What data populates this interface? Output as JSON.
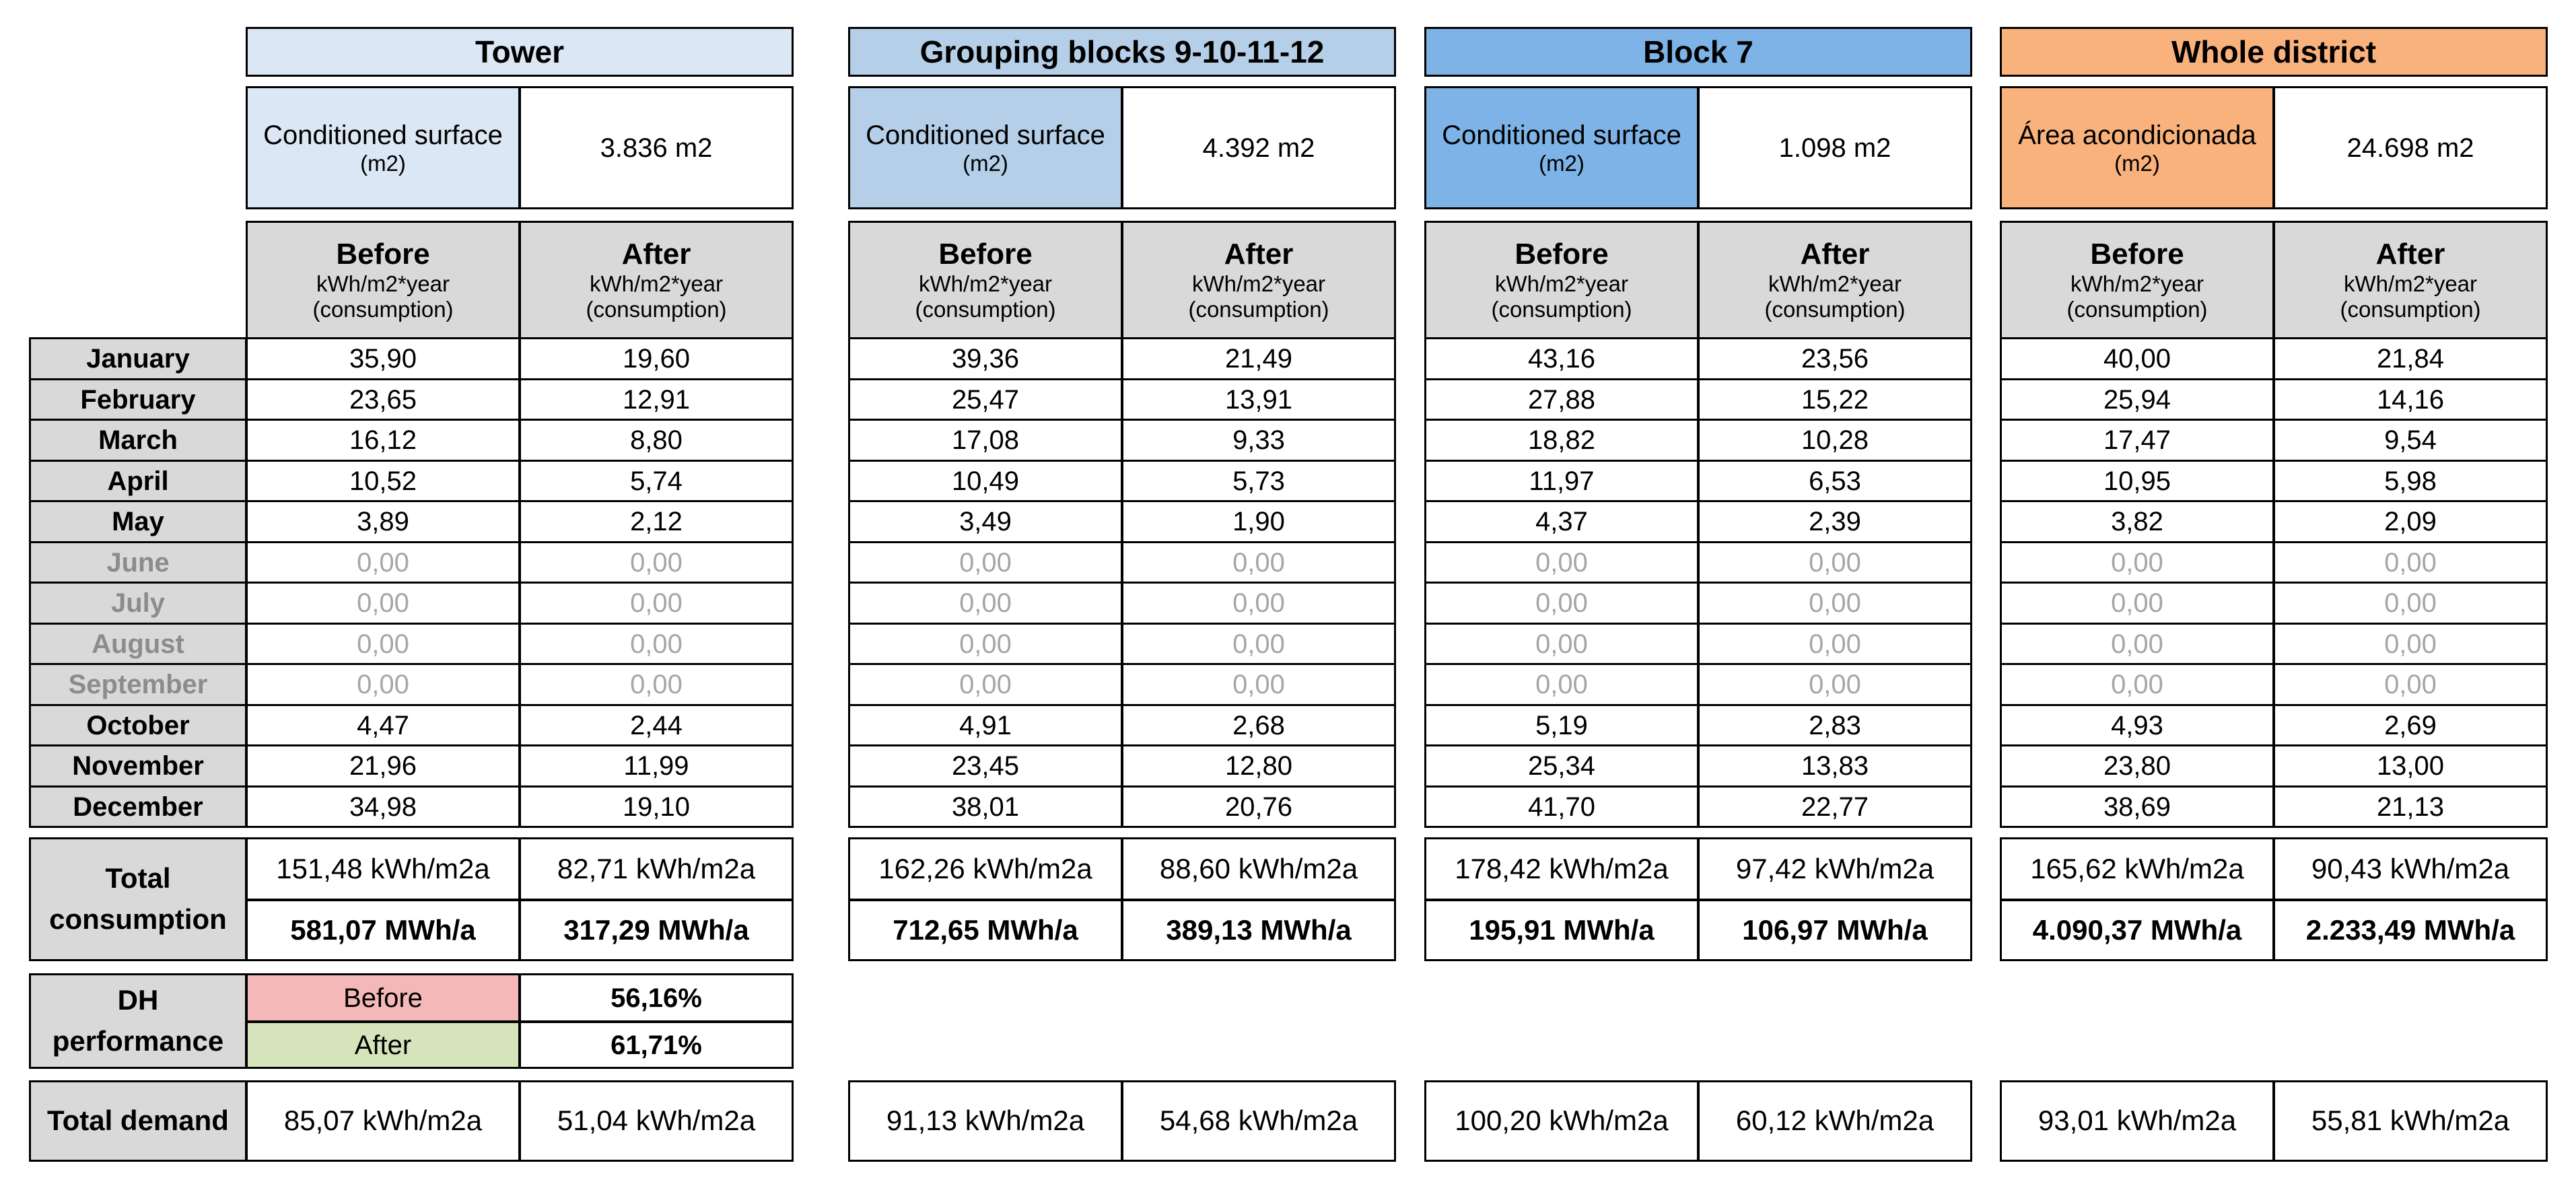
{
  "sections": [
    {
      "title": "Tower",
      "header_color": "#dbe7f4",
      "surface_label": "Conditioned surface",
      "surface_unit": "(m2)",
      "surface_value": "3.836 m2",
      "surface_color": "#dbe7f4",
      "before": [
        "35,90",
        "23,65",
        "16,12",
        "10,52",
        "3,89",
        "0,00",
        "0,00",
        "0,00",
        "0,00",
        "4,47",
        "21,96",
        "34,98"
      ],
      "after": [
        "19,60",
        "12,91",
        "8,80",
        "5,74",
        "2,12",
        "0,00",
        "0,00",
        "0,00",
        "0,00",
        "2,44",
        "11,99",
        "19,10"
      ],
      "total_kwh_before": "151,48 kWh/m2a",
      "total_kwh_after": "82,71 kWh/m2a",
      "total_mwh_before": "581,07 MWh/a",
      "total_mwh_after": "317,29 MWh/a",
      "demand_before": "85,07 kWh/m2a",
      "demand_after": "51,04 kWh/m2a"
    },
    {
      "title": "Grouping blocks 9-10-11-12",
      "header_color": "#b5cfe8",
      "surface_label": "Conditioned surface",
      "surface_unit": "(m2)",
      "surface_value": "4.392 m2",
      "surface_color": "#b5cfe8",
      "before": [
        "39,36",
        "25,47",
        "17,08",
        "10,49",
        "3,49",
        "0,00",
        "0,00",
        "0,00",
        "0,00",
        "4,91",
        "23,45",
        "38,01"
      ],
      "after": [
        "21,49",
        "13,91",
        "9,33",
        "5,73",
        "1,90",
        "0,00",
        "0,00",
        "0,00",
        "0,00",
        "2,68",
        "12,80",
        "20,76"
      ],
      "total_kwh_before": "162,26 kWh/m2a",
      "total_kwh_after": "88,60 kWh/m2a",
      "total_mwh_before": "712,65 MWh/a",
      "total_mwh_after": "389,13 MWh/a",
      "demand_before": "91,13 kWh/m2a",
      "demand_after": "54,68 kWh/m2a"
    },
    {
      "title": "Block 7",
      "header_color": "#7db3e6",
      "surface_label": "Conditioned surface",
      "surface_unit": "(m2)",
      "surface_value": "1.098 m2",
      "surface_color": "#7db3e6",
      "before": [
        "43,16",
        "27,88",
        "18,82",
        "11,97",
        "4,37",
        "0,00",
        "0,00",
        "0,00",
        "0,00",
        "5,19",
        "25,34",
        "41,70"
      ],
      "after": [
        "23,56",
        "15,22",
        "10,28",
        "6,53",
        "2,39",
        "0,00",
        "0,00",
        "0,00",
        "0,00",
        "2,83",
        "13,83",
        "22,77"
      ],
      "total_kwh_before": "178,42 kWh/m2a",
      "total_kwh_after": "97,42 kWh/m2a",
      "total_mwh_before": "195,91 MWh/a",
      "total_mwh_after": "106,97 MWh/a",
      "demand_before": "100,20 kWh/m2a",
      "demand_after": "60,12 kWh/m2a"
    },
    {
      "title": "Whole district",
      "header_color": "#f9b27c",
      "surface_label": "Área acondicionada",
      "surface_unit": "(m2)",
      "surface_value": "24.698 m2",
      "surface_color": "#f9b27c",
      "before": [
        "40,00",
        "25,94",
        "17,47",
        "10,95",
        "3,82",
        "0,00",
        "0,00",
        "0,00",
        "0,00",
        "4,93",
        "23,80",
        "38,69"
      ],
      "after": [
        "21,84",
        "14,16",
        "9,54",
        "5,98",
        "2,09",
        "0,00",
        "0,00",
        "0,00",
        "0,00",
        "2,69",
        "13,00",
        "21,13"
      ],
      "total_kwh_before": "165,62 kWh/m2a",
      "total_kwh_after": "90,43 kWh/m2a",
      "total_mwh_before": "4.090,37 MWh/a",
      "total_mwh_after": "2.233,49 MWh/a",
      "demand_before": "93,01 kWh/m2a",
      "demand_after": "55,81 kWh/m2a"
    }
  ],
  "column_headers": {
    "before": "Before",
    "after": "After",
    "unit": "kWh/m2*year",
    "sub": "(consumption)"
  },
  "months": [
    "January",
    "February",
    "March",
    "April",
    "May",
    "June",
    "July",
    "August",
    "September",
    "October",
    "November",
    "December"
  ],
  "inactive_months": [
    "June",
    "July",
    "August",
    "September"
  ],
  "total_consumption_label": [
    "Total",
    "consumption"
  ],
  "dh": {
    "label": [
      "DH",
      "performance"
    ],
    "before_label": "Before",
    "before_value": "56,16%",
    "after_label": "After",
    "after_value": "61,71%",
    "before_color": "#f4b8b8",
    "after_color": "#d6e4bc"
  },
  "total_demand_label": "Total demand"
}
